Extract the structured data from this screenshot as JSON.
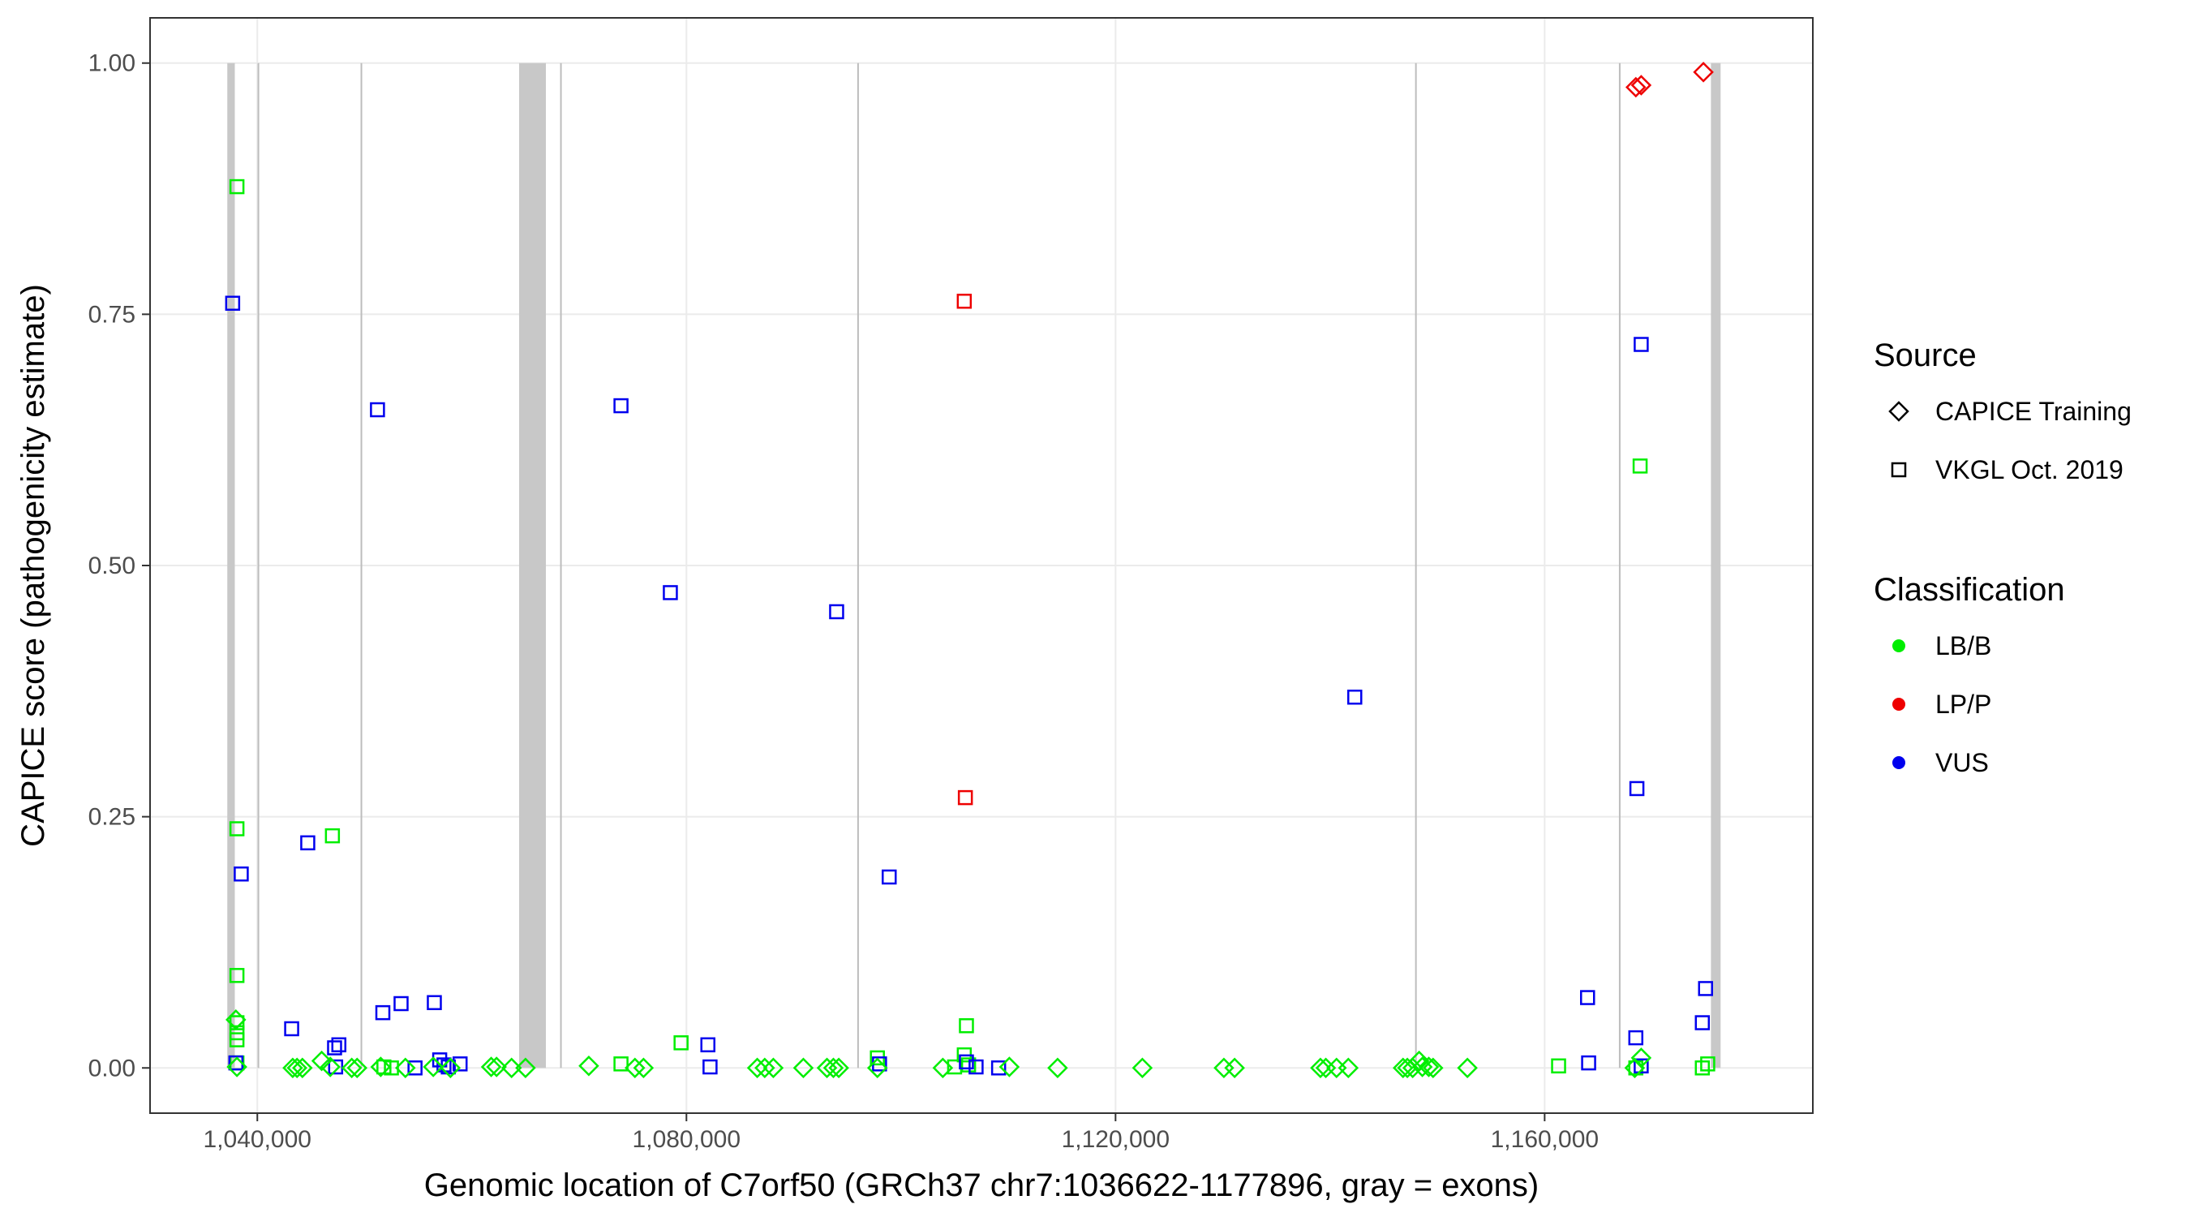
{
  "chart_data": {
    "type": "scatter",
    "xlabel": "Genomic location of C7orf50 (GRCh37 chr7:1036622-1177896, gray = exons)",
    "ylabel": "CAPICE score (pathogenicity estimate)",
    "xlim": [
      1030000,
      1185000
    ],
    "ylim": [
      -0.045,
      1.045
    ],
    "x_ticks": [
      1040000,
      1080000,
      1120000,
      1160000
    ],
    "x_tick_labels": [
      "1,040,000",
      "1,080,000",
      "1,120,000",
      "1,160,000"
    ],
    "y_ticks": [
      0,
      0.25,
      0.5,
      0.75,
      1
    ],
    "y_tick_labels": [
      "0.00",
      "0.25",
      "0.50",
      "0.75",
      "1.00"
    ],
    "grid": true,
    "exons": [
      [
        1037200,
        1037900
      ],
      [
        1064400,
        1066900
      ],
      [
        1175500,
        1176400
      ]
    ],
    "gene_lines": [
      1040100,
      1049700,
      1068300,
      1096000,
      1148000,
      1167000
    ],
    "legend": {
      "source_title": "Source",
      "source_items": [
        {
          "label": "CAPICE Training",
          "shape": "diamond"
        },
        {
          "label": "VKGL Oct. 2019",
          "shape": "square"
        }
      ],
      "class_title": "Classification",
      "class_items": [
        {
          "label": "LB/B",
          "color": "#00ee00"
        },
        {
          "label": "LP/P",
          "color": "#ee0000"
        },
        {
          "label": "VUS",
          "color": "#0000ee"
        }
      ]
    },
    "colors": {
      "LB/B": "#00ee00",
      "LP/P": "#ee0000",
      "VUS": "#0000ee"
    },
    "series": [
      {
        "source": "VKGL",
        "class": "LB/B",
        "points": [
          [
            1038100,
            0.877
          ],
          [
            1038100,
            0.238
          ],
          [
            1038100,
            0.092
          ],
          [
            1038100,
            0.045
          ],
          [
            1038100,
            0.035
          ],
          [
            1038100,
            0.028
          ],
          [
            1038100,
            0.005
          ],
          [
            1047000,
            0.231
          ],
          [
            1051800,
            0.001
          ],
          [
            1052500,
            0.0
          ],
          [
            1073900,
            0.004
          ],
          [
            1079500,
            0.025
          ],
          [
            1097800,
            0.01
          ],
          [
            1105000,
            0.001
          ],
          [
            1105900,
            0.013
          ],
          [
            1106100,
            0.042
          ],
          [
            1106300,
            0.003
          ],
          [
            1161300,
            0.002
          ],
          [
            1168900,
            0.599
          ],
          [
            1168500,
            0.0
          ],
          [
            1174700,
            0.0
          ],
          [
            1175200,
            0.004
          ]
        ]
      },
      {
        "source": "VKGL",
        "class": "LP/P",
        "points": [
          [
            1105900,
            0.763
          ],
          [
            1106000,
            0.269
          ]
        ]
      },
      {
        "source": "VKGL",
        "class": "VUS",
        "points": [
          [
            1037700,
            0.761
          ],
          [
            1038500,
            0.193
          ],
          [
            1038000,
            0.005
          ],
          [
            1043200,
            0.039
          ],
          [
            1044700,
            0.224
          ],
          [
            1047200,
            0.02
          ],
          [
            1047600,
            0.023
          ],
          [
            1047300,
            0.001
          ],
          [
            1051200,
            0.655
          ],
          [
            1051700,
            0.055
          ],
          [
            1053400,
            0.064
          ],
          [
            1054700,
            0.0
          ],
          [
            1056500,
            0.065
          ],
          [
            1057000,
            0.008
          ],
          [
            1057400,
            0.003
          ],
          [
            1057800,
            0.001
          ],
          [
            1058900,
            0.004
          ],
          [
            1073900,
            0.659
          ],
          [
            1078500,
            0.473
          ],
          [
            1082000,
            0.023
          ],
          [
            1082200,
            0.001
          ],
          [
            1094000,
            0.454
          ],
          [
            1098000,
            0.004
          ],
          [
            1098900,
            0.19
          ],
          [
            1106100,
            0.006
          ],
          [
            1107000,
            0.001
          ],
          [
            1109100,
            0.0
          ],
          [
            1142300,
            0.369
          ],
          [
            1164000,
            0.07
          ],
          [
            1164100,
            0.005
          ],
          [
            1168500,
            0.03
          ],
          [
            1168600,
            0.278
          ],
          [
            1169000,
            0.72
          ],
          [
            1169000,
            0.002
          ],
          [
            1174700,
            0.045
          ],
          [
            1175000,
            0.079
          ]
        ]
      },
      {
        "source": "CAPICE",
        "class": "LB/B",
        "points": [
          [
            1038000,
            0.048
          ],
          [
            1038100,
            0.001
          ],
          [
            1043300,
            0.0
          ],
          [
            1043700,
            0.0
          ],
          [
            1044200,
            0.0
          ],
          [
            1046000,
            0.007
          ],
          [
            1046800,
            0.001
          ],
          [
            1048800,
            0.0
          ],
          [
            1049300,
            0.0
          ],
          [
            1051500,
            0.001
          ],
          [
            1053800,
            0.0
          ],
          [
            1056400,
            0.001
          ],
          [
            1058000,
            0.0
          ],
          [
            1061800,
            0.001
          ],
          [
            1062300,
            0.001
          ],
          [
            1063700,
            0.0
          ],
          [
            1065000,
            0.0
          ],
          [
            1070900,
            0.002
          ],
          [
            1075200,
            0.0
          ],
          [
            1076000,
            0.0
          ],
          [
            1086600,
            0.0
          ],
          [
            1087300,
            0.0
          ],
          [
            1088100,
            0.0
          ],
          [
            1090900,
            0.0
          ],
          [
            1093100,
            0.0
          ],
          [
            1093700,
            0.0
          ],
          [
            1094200,
            0.0
          ],
          [
            1097800,
            0.0
          ],
          [
            1103900,
            0.0
          ],
          [
            1110100,
            0.001
          ],
          [
            1114600,
            0.0
          ],
          [
            1122500,
            0.0
          ],
          [
            1130100,
            0.0
          ],
          [
            1131100,
            0.0
          ],
          [
            1139100,
            0.0
          ],
          [
            1139600,
            0.0
          ],
          [
            1140600,
            0.0
          ],
          [
            1141700,
            0.0
          ],
          [
            1146800,
            0.0
          ],
          [
            1147200,
            0.0
          ],
          [
            1147700,
            0.0
          ],
          [
            1148300,
            0.007
          ],
          [
            1148600,
            0.001
          ],
          [
            1149200,
            0.001
          ],
          [
            1149600,
            0.0
          ],
          [
            1152800,
            0.0
          ],
          [
            1168400,
            0.0
          ],
          [
            1169000,
            0.01
          ]
        ]
      },
      {
        "source": "CAPICE",
        "class": "LP/P",
        "points": [
          [
            1168500,
            0.976
          ],
          [
            1169000,
            0.978
          ],
          [
            1174800,
            0.991
          ]
        ]
      }
    ]
  }
}
